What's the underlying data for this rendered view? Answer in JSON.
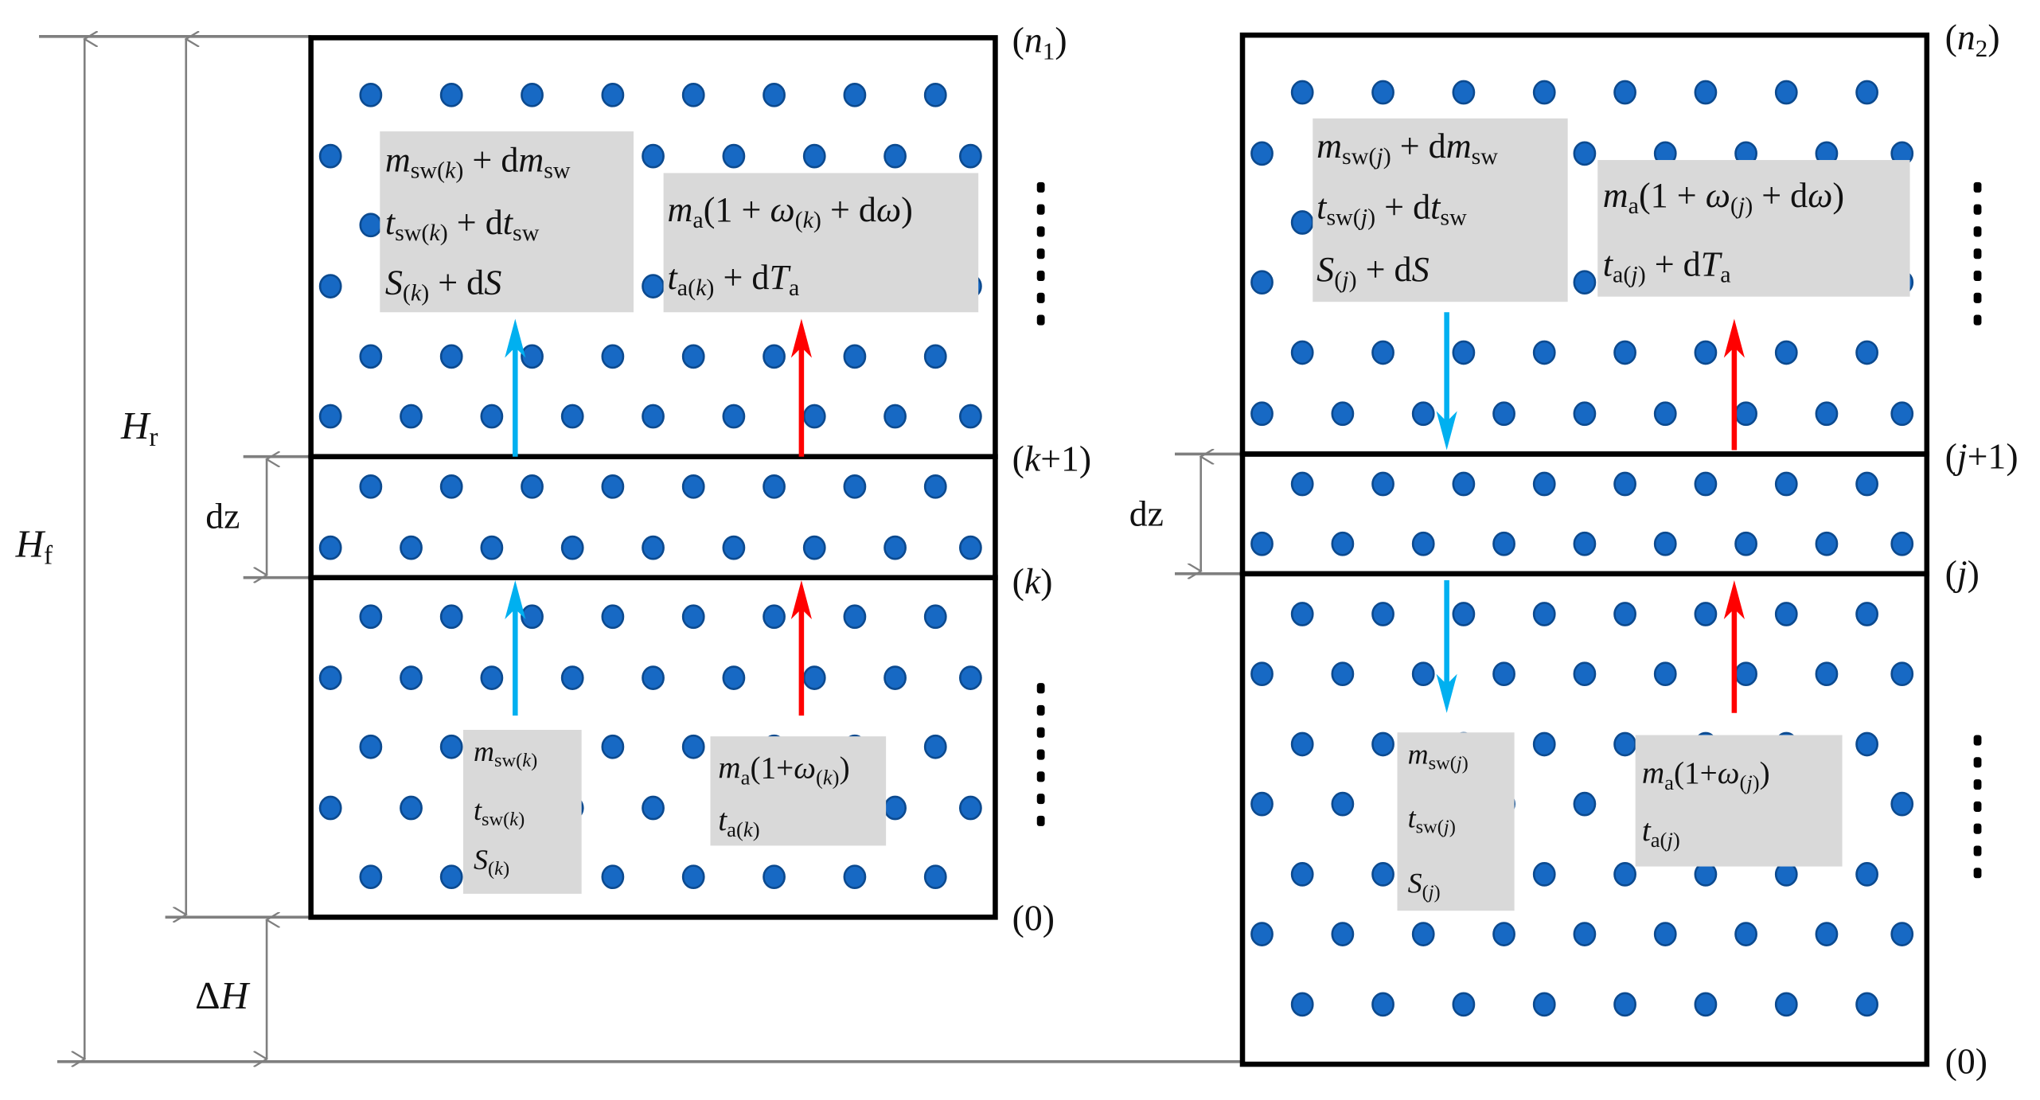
{
  "colors": {
    "dot_fill": "#1769c4",
    "dot_stroke": "#0c4a8f",
    "cold_water_arrow": "#00b0f0",
    "air_arrow": "#ff0000",
    "dimension_lines": "#7f7f7f",
    "label_box": "#d9d9d9",
    "box_border": "#000000"
  },
  "dimensions": {
    "Hf": [
      [
        "H",
        "i"
      ],
      [
        "f",
        "s"
      ]
    ],
    "Hr": [
      [
        "H",
        "i"
      ],
      [
        "r",
        "s"
      ]
    ],
    "dz_left": [
      [
        "dz",
        ""
      ]
    ],
    "dz_right": [
      [
        "dz",
        ""
      ]
    ],
    "deltaH": [
      [
        "Δ",
        ""
      ],
      [
        "H",
        "i"
      ]
    ]
  },
  "node_labels_left": {
    "n1": [
      [
        "(",
        ""
      ],
      [
        "n",
        "i"
      ],
      [
        "1",
        "s"
      ],
      [
        ")",
        ""
      ]
    ],
    "k_plus_1": [
      [
        "(",
        ""
      ],
      [
        "k",
        "i"
      ],
      [
        "+1",
        ""
      ],
      [
        ")",
        ""
      ]
    ],
    "k": [
      [
        "(",
        ""
      ],
      [
        "k",
        "i"
      ],
      [
        ")",
        ""
      ]
    ],
    "zero": [
      [
        "(0)",
        ""
      ]
    ]
  },
  "node_labels_right": {
    "n2": [
      [
        "(",
        ""
      ],
      [
        "n",
        "i"
      ],
      [
        "2",
        "s"
      ],
      [
        ")",
        ""
      ]
    ],
    "j_plus_1": [
      [
        "(",
        ""
      ],
      [
        "j",
        "i"
      ],
      [
        "+1",
        ""
      ],
      [
        ")",
        ""
      ]
    ],
    "j": [
      [
        "(",
        ""
      ],
      [
        "j",
        "i"
      ],
      [
        ")",
        ""
      ]
    ],
    "zero": [
      [
        "(0)",
        ""
      ]
    ]
  },
  "formulas": {
    "left_top_water": [
      [
        [
          "m",
          "i"
        ],
        [
          "sw(",
          "s"
        ],
        [
          "k",
          "si"
        ],
        [
          ")",
          "s"
        ],
        [
          " + d",
          ""
        ],
        [
          "m",
          "i"
        ],
        [
          "sw",
          "s"
        ]
      ],
      [
        [
          "t",
          "i"
        ],
        [
          "sw(",
          "s"
        ],
        [
          "k",
          "si"
        ],
        [
          ")",
          "s"
        ],
        [
          " + d",
          ""
        ],
        [
          "t",
          "i"
        ],
        [
          "sw",
          "s"
        ]
      ],
      [
        [
          "S",
          "i"
        ],
        [
          "(",
          "s"
        ],
        [
          "k",
          "si"
        ],
        [
          ")",
          "s"
        ],
        [
          " + d",
          ""
        ],
        [
          "S",
          "i"
        ]
      ]
    ],
    "left_top_air": [
      [
        [
          "m",
          "i"
        ],
        [
          "a",
          "s"
        ],
        [
          "(1 + ",
          ""
        ],
        [
          "ω",
          "i"
        ],
        [
          "(",
          "s"
        ],
        [
          "k",
          "si"
        ],
        [
          ")",
          "s"
        ],
        [
          " + d",
          ""
        ],
        [
          "ω",
          "i"
        ],
        [
          ")",
          ""
        ]
      ],
      [
        [
          "t",
          "i"
        ],
        [
          "a(",
          "s"
        ],
        [
          "k",
          "si"
        ],
        [
          ")",
          "s"
        ],
        [
          " + d",
          ""
        ],
        [
          "T",
          "i"
        ],
        [
          "a",
          "s"
        ]
      ]
    ],
    "left_bottom_water": [
      [
        [
          "m",
          "i"
        ],
        [
          "sw(",
          "s"
        ],
        [
          "k",
          "si"
        ],
        [
          ")",
          "s"
        ]
      ],
      [
        [
          "t",
          "i"
        ],
        [
          "sw(",
          "s"
        ],
        [
          "k",
          "si"
        ],
        [
          ")",
          "s"
        ]
      ],
      [
        [
          "S",
          "i"
        ],
        [
          "(",
          "s"
        ],
        [
          "k",
          "si"
        ],
        [
          ")",
          "s"
        ]
      ]
    ],
    "left_bottom_air": [
      [
        [
          "m",
          "i"
        ],
        [
          "a",
          "s"
        ],
        [
          "(1+",
          ""
        ],
        [
          "ω",
          "i"
        ],
        [
          "(",
          "s"
        ],
        [
          "k",
          "si"
        ],
        [
          ")",
          "s"
        ],
        [
          ")",
          ""
        ]
      ],
      [
        [
          "t",
          "i"
        ],
        [
          "a(",
          "s"
        ],
        [
          "k",
          "si"
        ],
        [
          ")",
          "s"
        ]
      ]
    ],
    "right_top_water": [
      [
        [
          "m",
          "i"
        ],
        [
          "sw(",
          "s"
        ],
        [
          "j",
          "si"
        ],
        [
          ")",
          "s"
        ],
        [
          " + d",
          ""
        ],
        [
          "m",
          "i"
        ],
        [
          "sw",
          "s"
        ]
      ],
      [
        [
          "t",
          "i"
        ],
        [
          "sw(",
          "s"
        ],
        [
          "j",
          "si"
        ],
        [
          ")",
          "s"
        ],
        [
          " + d",
          ""
        ],
        [
          "t",
          "i"
        ],
        [
          "sw",
          "s"
        ]
      ],
      [
        [
          "S",
          "i"
        ],
        [
          "(",
          "s"
        ],
        [
          "j",
          "si"
        ],
        [
          ")",
          "s"
        ],
        [
          " + d",
          ""
        ],
        [
          "S",
          "i"
        ]
      ]
    ],
    "right_top_air": [
      [
        [
          "m",
          "i"
        ],
        [
          "a",
          "s"
        ],
        [
          "(1 + ",
          ""
        ],
        [
          "ω",
          "i"
        ],
        [
          "(",
          "s"
        ],
        [
          "j",
          "si"
        ],
        [
          ")",
          "s"
        ],
        [
          " + d",
          ""
        ],
        [
          "ω",
          "i"
        ],
        [
          ")",
          ""
        ]
      ],
      [
        [
          "t",
          "i"
        ],
        [
          "a(",
          "s"
        ],
        [
          "j",
          "si"
        ],
        [
          ")",
          "s"
        ],
        [
          " + d",
          ""
        ],
        [
          "T",
          "i"
        ],
        [
          "a",
          "s"
        ]
      ]
    ],
    "right_bottom_water": [
      [
        [
          "m",
          "i"
        ],
        [
          "sw(",
          "s"
        ],
        [
          "j",
          "si"
        ],
        [
          ")",
          "s"
        ]
      ],
      [
        [
          "t",
          "i"
        ],
        [
          "sw(",
          "s"
        ],
        [
          "j",
          "si"
        ],
        [
          ")",
          "s"
        ]
      ],
      [
        [
          "S",
          "i"
        ],
        [
          "(",
          "s"
        ],
        [
          "j",
          "si"
        ],
        [
          ")",
          "s"
        ]
      ]
    ],
    "right_bottom_air": [
      [
        [
          "m",
          "i"
        ],
        [
          "a",
          "s"
        ],
        [
          "(1+",
          ""
        ],
        [
          "ω",
          "i"
        ],
        [
          "(",
          "s"
        ],
        [
          "j",
          "si"
        ],
        [
          ")",
          "s"
        ],
        [
          ")",
          ""
        ]
      ],
      [
        [
          "t",
          "i"
        ],
        [
          "a(",
          "s"
        ],
        [
          "j",
          "si"
        ],
        [
          ")",
          "s"
        ]
      ]
    ]
  }
}
